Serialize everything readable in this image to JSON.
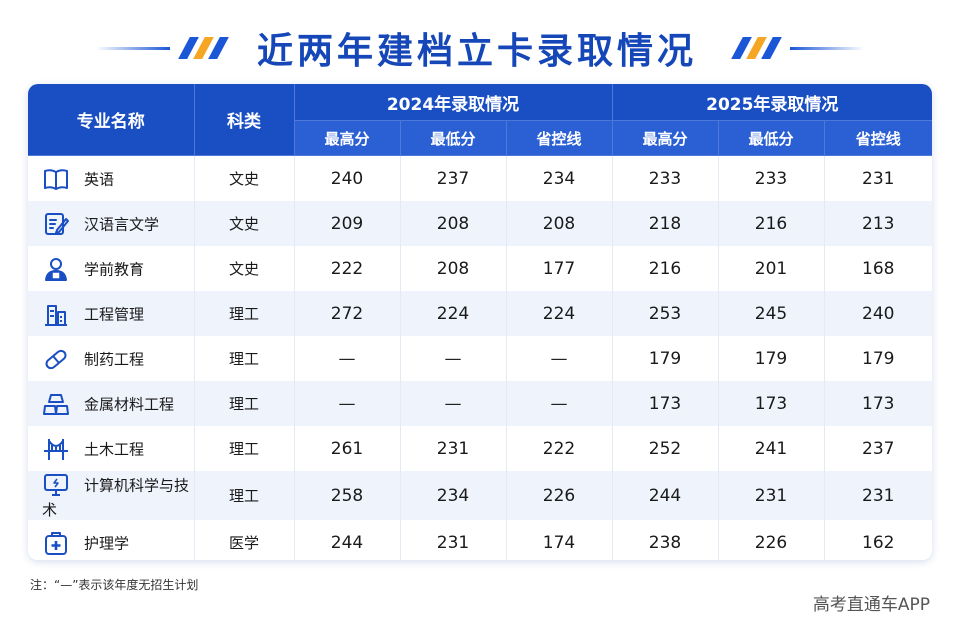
{
  "title": "近两年建档立卡录取情况",
  "colors": {
    "accent": "#1a4fc4",
    "title": "#1547b8",
    "stripe_a": "#1a56d6",
    "stripe_b": "#f5a623"
  },
  "headers": {
    "major": "专业名称",
    "category": "科类",
    "year_a": "2024年录取情况",
    "year_b": "2025年录取情况",
    "sub": [
      "最高分",
      "最低分",
      "省控线",
      "最高分",
      "最低分",
      "省控线"
    ]
  },
  "rows": [
    {
      "icon": "book-icon",
      "name": "英语",
      "category": "文史",
      "v": [
        "240",
        "237",
        "234",
        "233",
        "233",
        "231"
      ]
    },
    {
      "icon": "edit-document-icon",
      "name": "汉语言文学",
      "category": "文史",
      "v": [
        "209",
        "208",
        "208",
        "218",
        "216",
        "213"
      ]
    },
    {
      "icon": "teacher-icon",
      "name": "学前教育",
      "category": "文史",
      "v": [
        "222",
        "208",
        "177",
        "216",
        "201",
        "168"
      ]
    },
    {
      "icon": "buildings-icon",
      "name": "工程管理",
      "category": "理工",
      "v": [
        "272",
        "224",
        "224",
        "253",
        "245",
        "240"
      ]
    },
    {
      "icon": "pill-icon",
      "name": "制药工程",
      "category": "理工",
      "v": [
        "—",
        "—",
        "—",
        "179",
        "179",
        "179"
      ]
    },
    {
      "icon": "metal-ingots-icon",
      "name": "金属材料工程",
      "category": "理工",
      "v": [
        "—",
        "—",
        "—",
        "173",
        "173",
        "173"
      ]
    },
    {
      "icon": "bridge-icon",
      "name": "土木工程",
      "category": "理工",
      "v": [
        "261",
        "231",
        "222",
        "252",
        "241",
        "237"
      ]
    },
    {
      "icon": "computer-monitor-icon",
      "name": "计算机科学与技术",
      "category": "理工",
      "v": [
        "258",
        "234",
        "226",
        "244",
        "231",
        "231"
      ]
    },
    {
      "icon": "medical-kit-icon",
      "name": "护理学",
      "category": "医学",
      "v": [
        "244",
        "231",
        "174",
        "238",
        "226",
        "162"
      ]
    }
  ],
  "note": "注：“—”表示该年度无招生计划",
  "watermark": "高考直通车APP"
}
